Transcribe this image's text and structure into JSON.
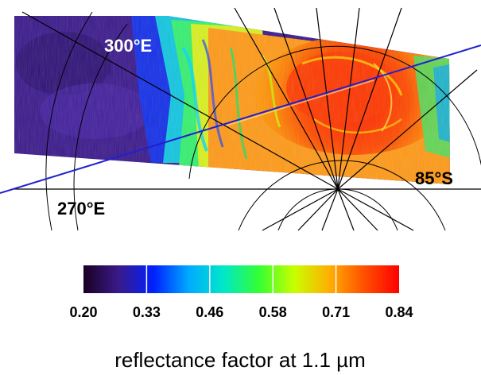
{
  "map": {
    "labels": {
      "lon_300": "300°E",
      "lon_270": "270°E",
      "lat_85": "85°S"
    }
  },
  "colorbar": {
    "ticks": [
      "0.20",
      "0.33",
      "0.46",
      "0.58",
      "0.71",
      "0.84"
    ],
    "stops": [
      "#1a0022",
      "#3a1a8a",
      "#0020ff",
      "#00aaff",
      "#00e8c8",
      "#33ff33",
      "#c8ff00",
      "#ffb000",
      "#ff5000",
      "#ff0000"
    ],
    "caption": "reflectance factor at 1.1 µm"
  }
}
